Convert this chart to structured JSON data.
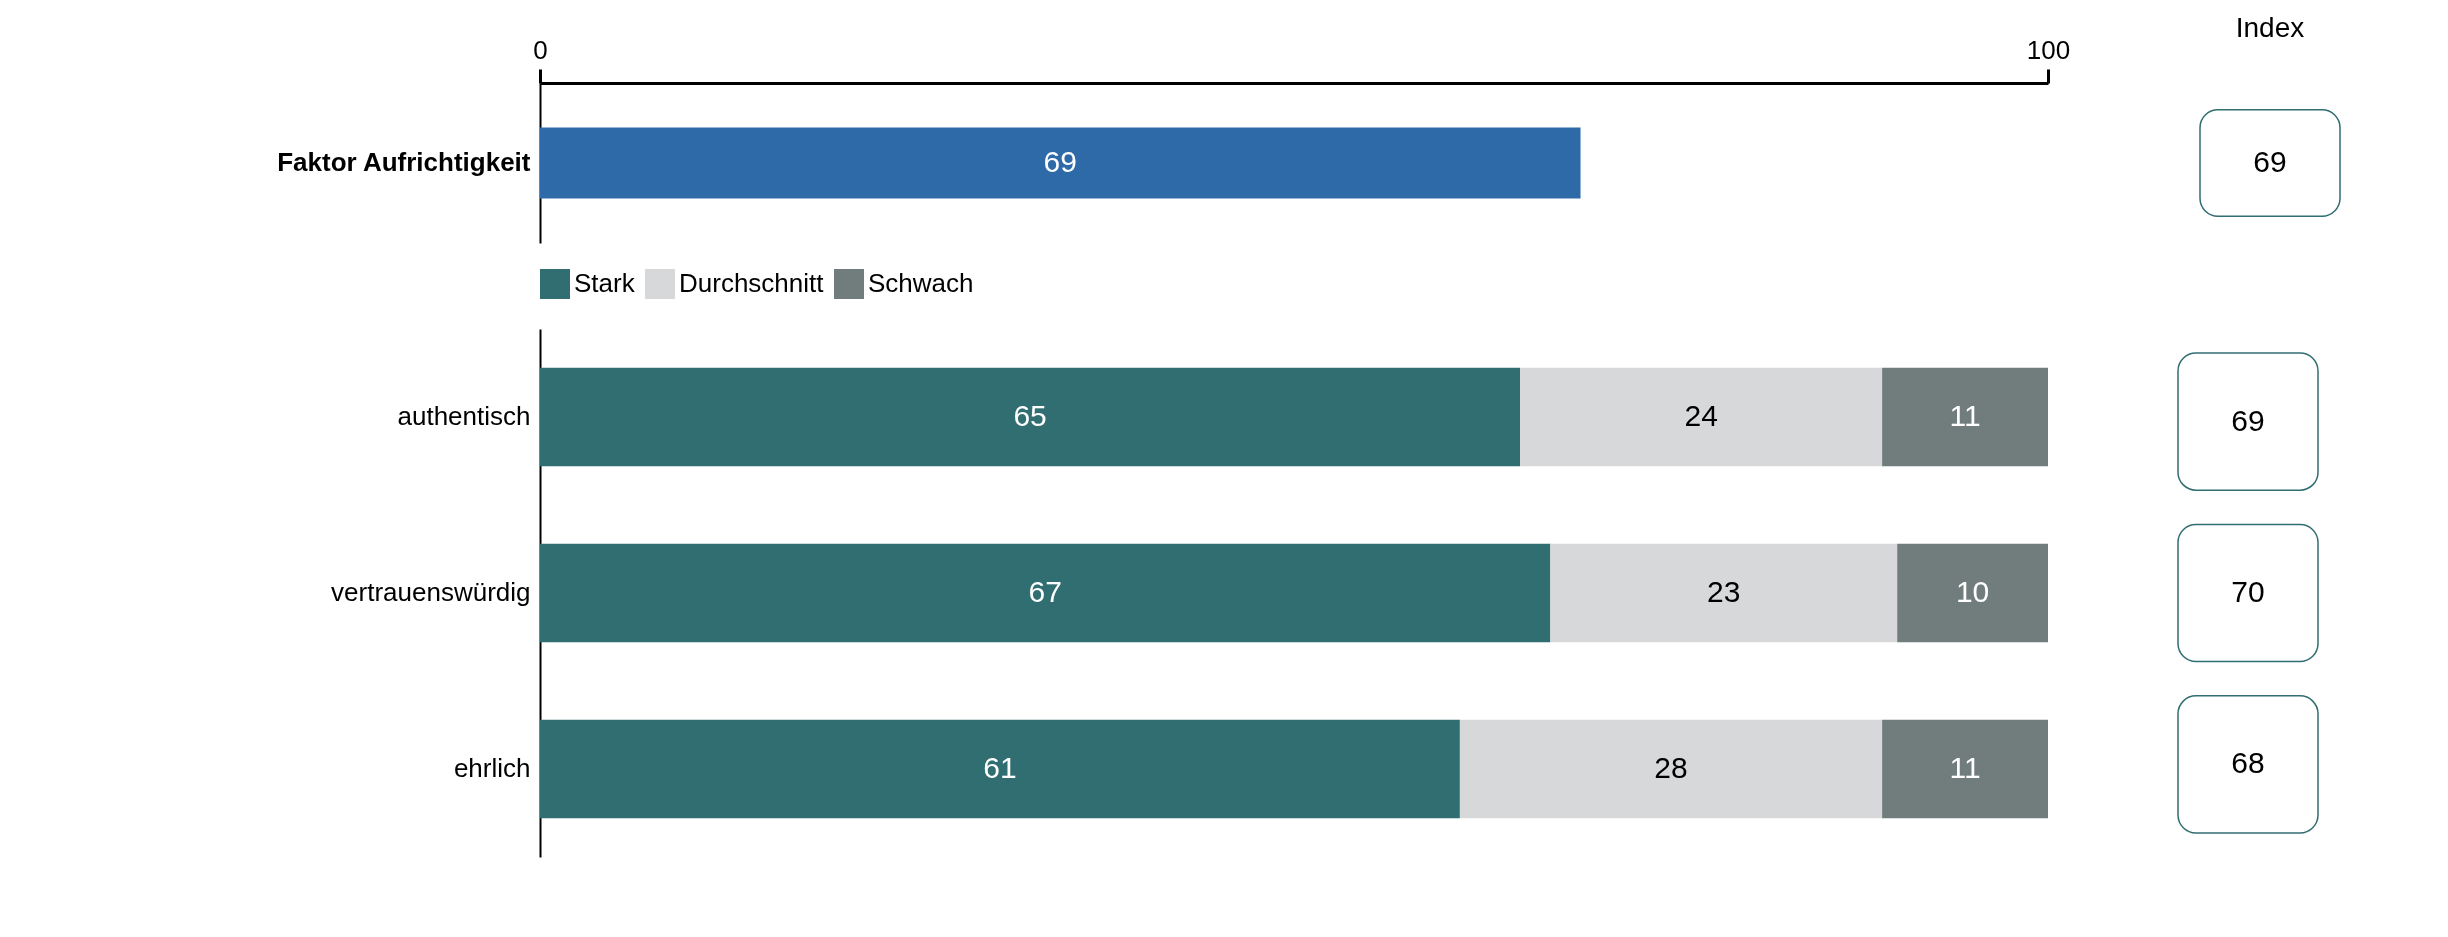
{
  "chart_data": [
    {
      "type": "bar",
      "orientation": "horizontal",
      "categories": [
        "Faktor Aufrichtigkeit"
      ],
      "values": [
        69
      ],
      "color": "#2e6aa8",
      "xlim": [
        0,
        100
      ],
      "xticks": [
        0,
        100
      ],
      "data_labels": true,
      "annotations": [
        "Index",
        "69"
      ]
    },
    {
      "type": "bar",
      "orientation": "horizontal",
      "stacked": true,
      "categories": [
        "authentisch",
        "vertrauenswürdig",
        "ehrlich"
      ],
      "xlim": [
        0,
        100
      ],
      "tick_labels": "y",
      "data_labels": true,
      "legend": "top",
      "series": [
        {
          "name": "Stark",
          "color": "#316e72",
          "values": [
            65,
            67,
            61
          ]
        },
        {
          "name": "Durchschnitt",
          "color": "#d7d8d9",
          "values": [
            24,
            23,
            28
          ]
        },
        {
          "name": "Schwach",
          "color": "#717c7c",
          "values": [
            11,
            10,
            11
          ]
        }
      ],
      "annotations": [
        "69",
        "70",
        "68"
      ]
    }
  ]
}
